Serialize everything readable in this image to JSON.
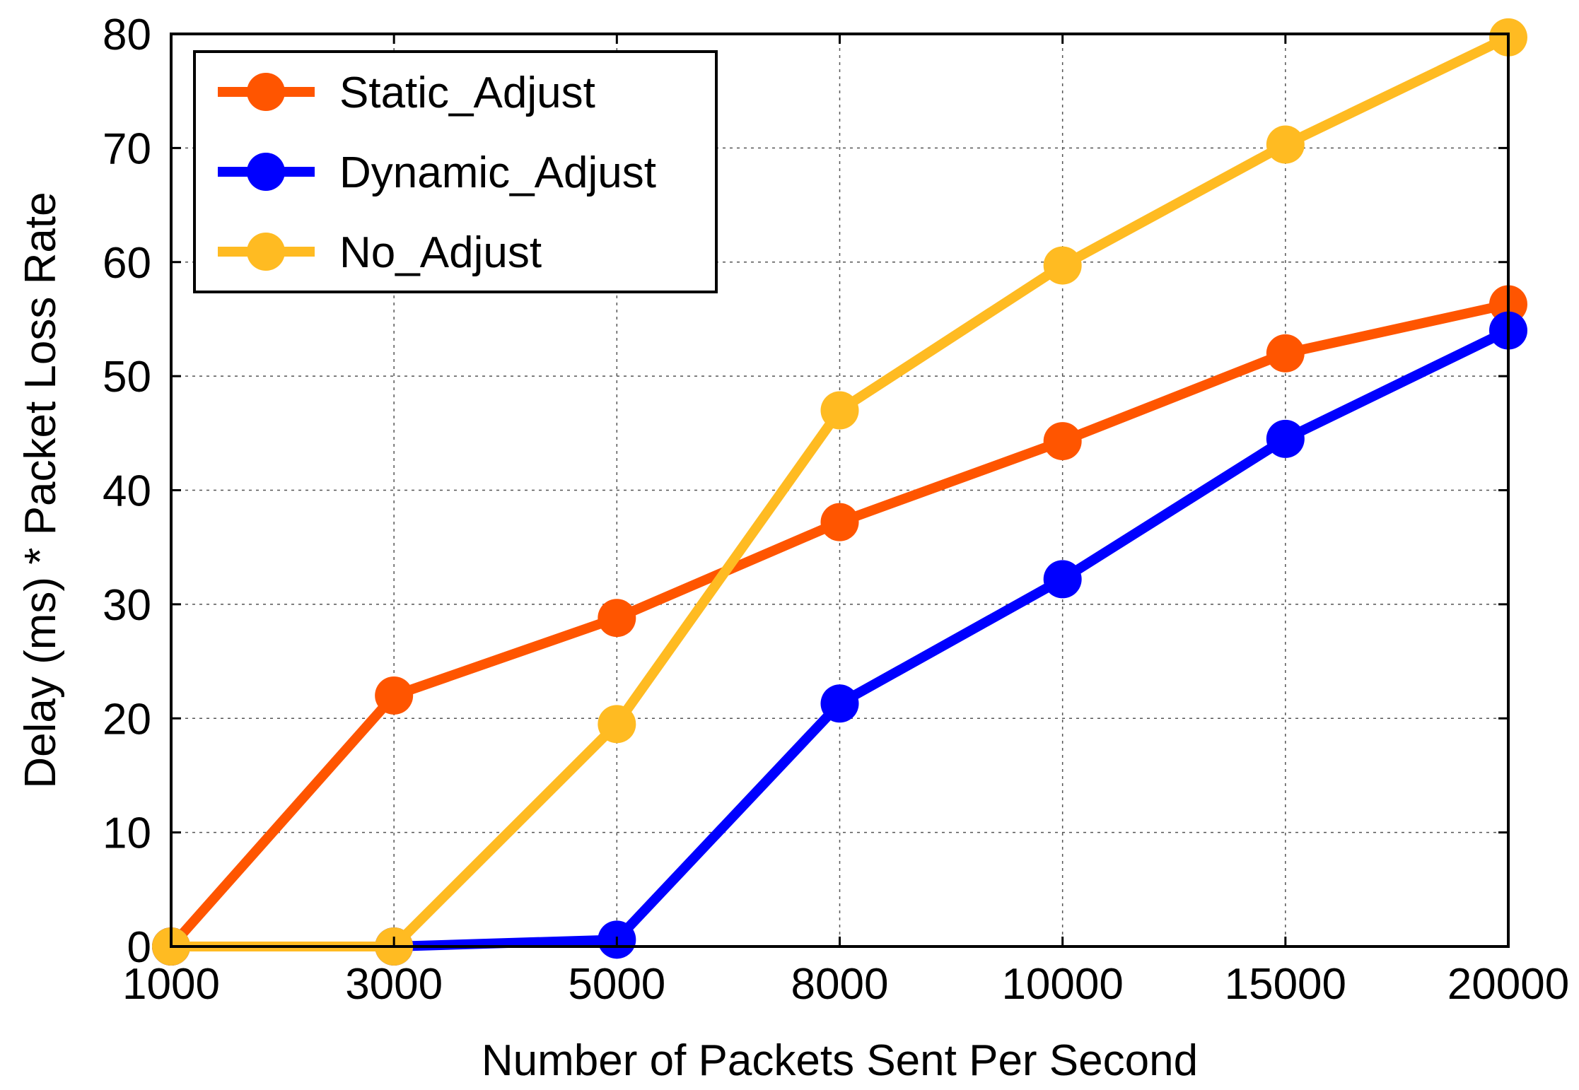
{
  "chart_data": {
    "type": "line",
    "xlabel": "Number of Packets Sent Per Second",
    "ylabel": "Delay (ms) * Packet Loss Rate",
    "categories": [
      "1000",
      "3000",
      "5000",
      "8000",
      "10000",
      "15000",
      "20000"
    ],
    "ylim": [
      0,
      80
    ],
    "yticks": [
      "0",
      "10",
      "20",
      "30",
      "40",
      "50",
      "60",
      "70",
      "80"
    ],
    "grid": true,
    "legend_position": "top-left",
    "series": [
      {
        "name": "Static_Adjust",
        "color": "#ff5500",
        "values": [
          0,
          22,
          28.8,
          37.2,
          44.3,
          52,
          56.3
        ]
      },
      {
        "name": "Dynamic_Adjust",
        "color": "#0000ff",
        "values": [
          0,
          0,
          0.6,
          21.3,
          32.2,
          44.5,
          54
        ]
      },
      {
        "name": "No_Adjust",
        "color": "#ffbb22",
        "values": [
          0,
          0,
          19.5,
          47,
          59.7,
          70.3,
          79.7
        ]
      }
    ]
  }
}
